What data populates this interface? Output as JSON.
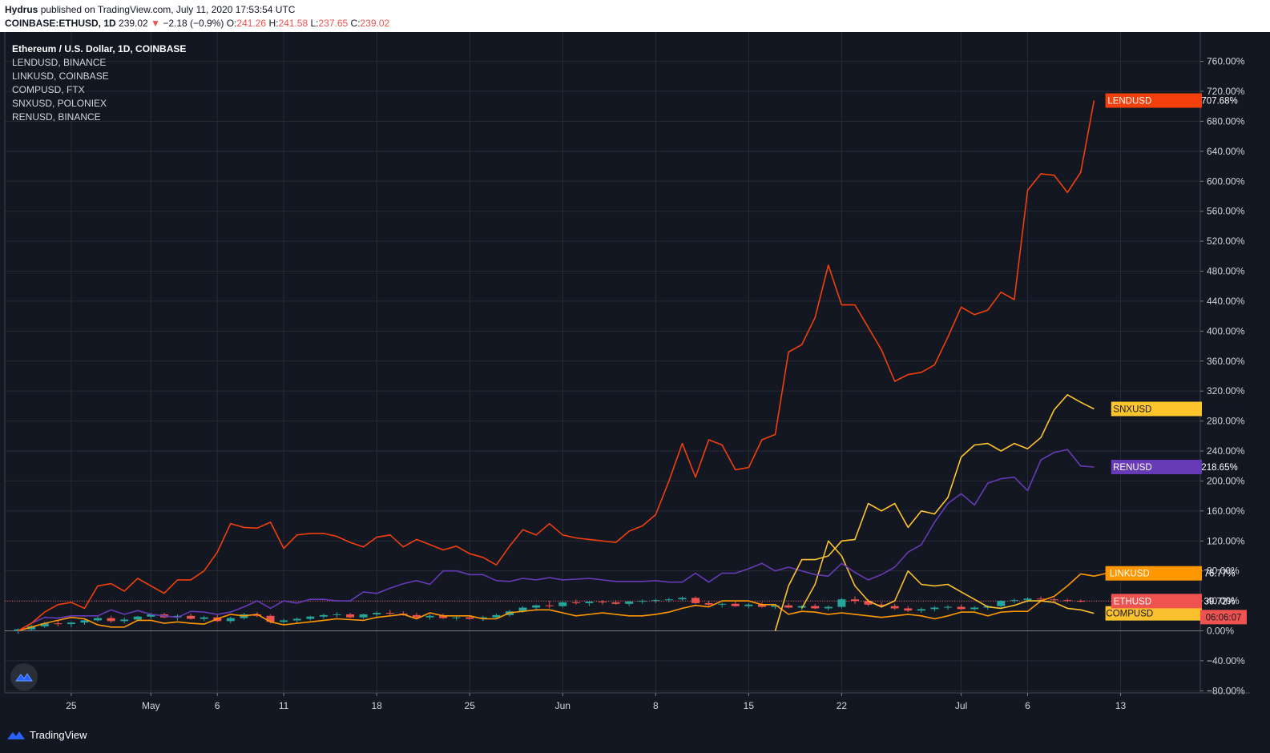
{
  "header": {
    "publisher": "Hydrus",
    "published_text": "published on TradingView.com, July 11, 2020 17:53:54 UTC",
    "symbol": "COINBASE:ETHUSD, 1D",
    "price": "239.02",
    "change": "−2.18 (−0.9%)",
    "o_label": "O:",
    "o_value": "241.26",
    "h_label": "H:",
    "h_value": "241.58",
    "l_label": "L:",
    "l_value": "237.65",
    "c_label": "C:",
    "c_value": "239.02"
  },
  "legend": {
    "main": "Ethereum / U.S. Dollar, 1D, COINBASE",
    "items": [
      "LENDUSD, BINANCE",
      "LINKUSD, COINBASE",
      "COMPUSD, FTX",
      "SNXUSD, POLONIEX",
      "RENUSD, BINANCE"
    ]
  },
  "countdown": "06:06:07",
  "footer": {
    "brand": "TradingView"
  },
  "colors": {
    "background": "#131722",
    "grid": "#363a45",
    "lend": "#f23f0c",
    "snx": "#ffc52c",
    "ren": "#673ab7",
    "link": "#ff9800",
    "eth_up": "#26a69a",
    "eth_down": "#ef5350",
    "comp": "#fbc02d"
  },
  "chart_data": {
    "type": "line",
    "y_unit": "%",
    "ylim": [
      -80,
      790
    ],
    "y_ticks": [
      -80,
      -40,
      0,
      40,
      80,
      120,
      160,
      200,
      240,
      280,
      320,
      360,
      400,
      440,
      480,
      520,
      560,
      600,
      640,
      680,
      720,
      760
    ],
    "y_tick_labels": [
      "−80.00%",
      "−40.00%",
      "0.00%",
      "40.00%",
      "80.00%",
      "120.00%",
      "160.00%",
      "200.00%",
      "240.00%",
      "280.00%",
      "320.00%",
      "360.00%",
      "400.00%",
      "440.00%",
      "480.00%",
      "520.00%",
      "560.00%",
      "600.00%",
      "640.00%",
      "680.00%",
      "720.00%",
      "760.00%"
    ],
    "x_start": "2020-04-20",
    "x_end": "2020-07-19",
    "x_ticks": [
      {
        "date": "2020-04-25",
        "label": "25"
      },
      {
        "date": "2020-05-01",
        "label": "May"
      },
      {
        "date": "2020-05-06",
        "label": "6"
      },
      {
        "date": "2020-05-11",
        "label": "11"
      },
      {
        "date": "2020-05-18",
        "label": "18"
      },
      {
        "date": "2020-05-25",
        "label": "25"
      },
      {
        "date": "2020-06-01",
        "label": "Jun"
      },
      {
        "date": "2020-06-08",
        "label": "8"
      },
      {
        "date": "2020-06-15",
        "label": "15"
      },
      {
        "date": "2020-06-22",
        "label": "22"
      },
      {
        "date": "2020-07-01",
        "label": "Jul"
      },
      {
        "date": "2020-07-06",
        "label": "6"
      },
      {
        "date": "2020-07-13",
        "label": "13"
      }
    ],
    "series": [
      {
        "name": "LENDUSD",
        "color": "#f23f0c",
        "last_label": "707.68%",
        "start_date": "2020-04-21",
        "values": [
          0,
          10,
          25,
          35,
          38,
          30,
          60,
          63,
          53,
          70,
          60,
          50,
          68,
          68,
          80,
          105,
          143,
          138,
          137,
          145,
          110,
          128,
          130,
          130,
          126,
          118,
          112,
          125,
          128,
          112,
          122,
          115,
          108,
          113,
          103,
          98,
          88,
          113,
          135,
          128,
          143,
          128,
          124,
          122,
          120,
          118,
          133,
          140,
          155,
          200,
          250,
          205,
          255,
          248,
          215,
          218,
          255,
          262,
          372,
          382,
          418,
          488,
          435,
          435,
          405,
          375,
          333,
          342,
          345,
          355,
          392,
          432,
          422,
          428,
          452,
          442,
          588,
          610,
          608,
          585,
          612,
          707.68
        ]
      },
      {
        "name": "SNXUSD",
        "color": "#ffc52c",
        "last_label": "296.16%",
        "start_date": "2020-06-17",
        "values": [
          0,
          60,
          95,
          95,
          100,
          120,
          122,
          170,
          160,
          170,
          138,
          160,
          156,
          178,
          232,
          248,
          250,
          240,
          250,
          243,
          258,
          295,
          315,
          305,
          296.16
        ]
      },
      {
        "name": "RENUSD",
        "color": "#673ab7",
        "last_label": "218.65%",
        "start_date": "2020-04-21",
        "values": [
          0,
          10,
          18,
          17,
          20,
          20,
          20,
          28,
          22,
          27,
          22,
          20,
          18,
          26,
          25,
          22,
          25,
          32,
          40,
          30,
          40,
          37,
          42,
          42,
          40,
          40,
          52,
          50,
          57,
          63,
          67,
          62,
          80,
          80,
          75,
          75,
          67,
          66,
          70,
          68,
          71,
          68,
          69,
          70,
          68,
          66,
          66,
          66,
          67,
          65,
          65,
          77,
          65,
          77,
          77,
          83,
          90,
          80,
          85,
          80,
          75,
          73,
          90,
          78,
          68,
          75,
          85,
          105,
          115,
          145,
          170,
          183,
          168,
          197,
          203,
          205,
          187,
          228,
          238,
          242,
          220,
          218.65
        ]
      },
      {
        "name": "LINKUSD",
        "color": "#ff9800",
        "last_label": "76.77%",
        "start_date": "2020-04-21",
        "values": [
          0,
          5,
          10,
          14,
          18,
          16,
          8,
          5,
          5,
          14,
          14,
          10,
          12,
          10,
          9,
          16,
          22,
          20,
          22,
          12,
          8,
          10,
          12,
          14,
          16,
          15,
          14,
          18,
          20,
          22,
          16,
          24,
          20,
          20,
          20,
          16,
          16,
          24,
          26,
          28,
          28,
          24,
          20,
          22,
          24,
          22,
          20,
          20,
          22,
          25,
          30,
          34,
          32,
          40,
          40,
          40,
          35,
          35,
          22,
          26,
          25,
          22,
          24,
          22,
          20,
          18,
          20,
          22,
          20,
          16,
          20,
          25,
          25,
          20,
          25,
          26,
          26,
          40,
          46,
          60,
          76,
          73,
          77,
          76.77
        ]
      },
      {
        "name": "COMPUSD",
        "color": "#fbc02d",
        "last_label": "23.36%",
        "start_date": "2020-06-19",
        "values": [
          30,
          62,
          120,
          100,
          60,
          40,
          32,
          40,
          80,
          62,
          60,
          62,
          52,
          42,
          32,
          30,
          34,
          40,
          40,
          38,
          30,
          28,
          23.36
        ]
      },
      {
        "name": "ETHUSD",
        "color": "#ef5350",
        "last_label": "39.72%",
        "type": "candlestick",
        "start_date": "2020-04-21",
        "ohlc": [
          [
            0,
            3,
            -4,
            2
          ],
          [
            2,
            8,
            0,
            6
          ],
          [
            6,
            12,
            4,
            10
          ],
          [
            10,
            14,
            6,
            9
          ],
          [
            9,
            12,
            5,
            11
          ],
          [
            11,
            16,
            8,
            14
          ],
          [
            14,
            19,
            12,
            17
          ],
          [
            17,
            20,
            11,
            13
          ],
          [
            13,
            18,
            10,
            15
          ],
          [
            15,
            20,
            13,
            19
          ],
          [
            19,
            24,
            16,
            22
          ],
          [
            22,
            24,
            17,
            18
          ],
          [
            18,
            22,
            14,
            20
          ],
          [
            20,
            23,
            15,
            16
          ],
          [
            16,
            20,
            13,
            18
          ],
          [
            18,
            21,
            12,
            13
          ],
          [
            13,
            19,
            10,
            17
          ],
          [
            17,
            24,
            15,
            22
          ],
          [
            22,
            25,
            18,
            20
          ],
          [
            20,
            22,
            10,
            12
          ],
          [
            12,
            16,
            9,
            14
          ],
          [
            14,
            18,
            11,
            16
          ],
          [
            16,
            20,
            14,
            19
          ],
          [
            19,
            23,
            16,
            21
          ],
          [
            21,
            25,
            18,
            22
          ],
          [
            22,
            24,
            17,
            18
          ],
          [
            18,
            23,
            16,
            22
          ],
          [
            22,
            26,
            19,
            24
          ],
          [
            24,
            28,
            21,
            23
          ],
          [
            23,
            26,
            20,
            21
          ],
          [
            21,
            24,
            17,
            18
          ],
          [
            18,
            22,
            15,
            20
          ],
          [
            20,
            23,
            16,
            17
          ],
          [
            17,
            20,
            14,
            18
          ],
          [
            18,
            21,
            15,
            16
          ],
          [
            16,
            20,
            13,
            18
          ],
          [
            18,
            23,
            16,
            21
          ],
          [
            21,
            28,
            19,
            26
          ],
          [
            26,
            33,
            24,
            31
          ],
          [
            31,
            35,
            27,
            34
          ],
          [
            34,
            40,
            30,
            33
          ],
          [
            33,
            40,
            31,
            38
          ],
          [
            38,
            42,
            35,
            37
          ],
          [
            37,
            40,
            33,
            39
          ],
          [
            39,
            41,
            35,
            38
          ],
          [
            38,
            41,
            35,
            36
          ],
          [
            36,
            40,
            33,
            39
          ],
          [
            39,
            42,
            36,
            40
          ],
          [
            40,
            43,
            37,
            41
          ],
          [
            41,
            44,
            38,
            42
          ],
          [
            42,
            46,
            40,
            44
          ],
          [
            44,
            46,
            36,
            37
          ],
          [
            37,
            40,
            33,
            35
          ],
          [
            35,
            38,
            31,
            36
          ],
          [
            36,
            39,
            32,
            33
          ],
          [
            33,
            37,
            30,
            35
          ],
          [
            35,
            38,
            31,
            32
          ],
          [
            32,
            36,
            29,
            34
          ],
          [
            34,
            37,
            30,
            31
          ],
          [
            31,
            34,
            28,
            33
          ],
          [
            33,
            36,
            29,
            30
          ],
          [
            30,
            34,
            27,
            32
          ],
          [
            32,
            44,
            30,
            42
          ],
          [
            42,
            46,
            36,
            40
          ],
          [
            40,
            42,
            33,
            35
          ],
          [
            35,
            38,
            31,
            33
          ],
          [
            33,
            36,
            28,
            30
          ],
          [
            30,
            33,
            25,
            27
          ],
          [
            27,
            31,
            24,
            29
          ],
          [
            29,
            33,
            26,
            31
          ],
          [
            31,
            34,
            28,
            32
          ],
          [
            32,
            35,
            28,
            29
          ],
          [
            29,
            33,
            27,
            31
          ],
          [
            31,
            34,
            28,
            33
          ],
          [
            33,
            41,
            31,
            40
          ],
          [
            40,
            43,
            37,
            41
          ],
          [
            41,
            45,
            38,
            43
          ],
          [
            43,
            46,
            40,
            42
          ],
          [
            42,
            44,
            39,
            41
          ],
          [
            41,
            43,
            38,
            40
          ],
          [
            40,
            42,
            38,
            39.72
          ]
        ]
      }
    ],
    "zero_line": 0,
    "current_price_line": 39.72
  }
}
